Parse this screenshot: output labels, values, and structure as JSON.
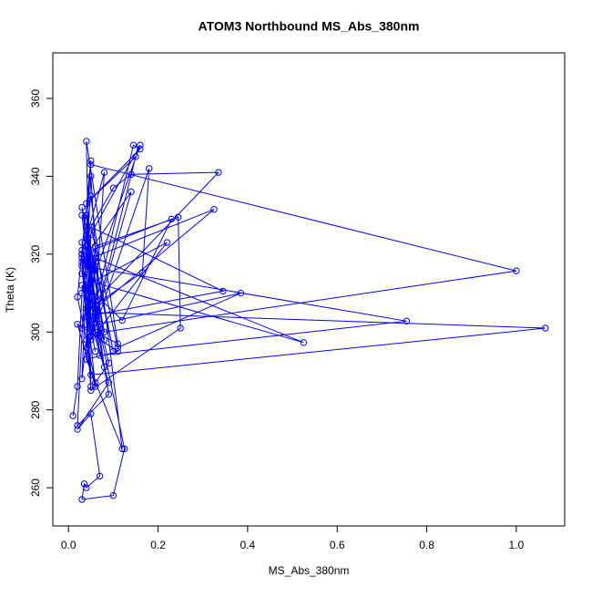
{
  "chart_data": {
    "type": "line",
    "title": "ATOM3 Northbound MS_Abs_380nm",
    "x_label": "MS_Abs_380nm",
    "y_label": "Theta (K)",
    "series": [
      {
        "color": "#0000ff",
        "x": [
          0.01,
          0.02,
          0.03,
          0.05,
          0.04,
          0.06,
          0.03,
          0.08,
          0.05,
          0.04,
          0.1,
          0.06,
          0.03,
          0.05,
          0.07,
          0.04,
          0.02,
          0.09,
          0.05,
          0.03,
          0.06,
          0.11,
          0.04,
          0.05,
          0.03,
          0.08,
          0.06,
          0.04,
          0.12,
          0.05,
          0.03,
          0.07,
          0.04,
          0.05,
          0.02,
          0.06,
          0.09,
          0.04,
          0.05,
          0.03,
          0.1,
          0.14,
          0.335,
          0.06,
          0.04,
          0.05,
          0.16,
          0.03,
          0.05,
          1.0,
          0.08,
          0.04,
          0.06,
          1.065,
          0.05,
          0.03,
          0.755,
          0.07,
          0.04,
          0.05,
          0.525,
          0.06,
          0.03,
          0.385,
          0.11,
          0.05,
          0.345,
          0.04,
          0.06,
          0.245,
          0.25,
          0.05,
          0.03,
          0.23,
          0.12,
          0.04,
          0.22,
          0.05,
          0.18,
          0.165,
          0.06,
          0.145,
          0.16,
          0.04,
          0.15,
          0.05,
          0.14,
          0.03,
          0.325,
          0.06,
          0.125,
          0.1,
          0.03,
          0.035,
          0.04,
          0.07,
          0.05,
          0.02,
          0.09,
          0.04,
          0.06,
          0.03,
          0.08,
          0.05,
          0.04,
          0.11,
          0.02,
          0.06,
          0.03,
          0.05
        ],
        "values": [
          278.5,
          286,
          310,
          325,
          298,
          316,
          332,
          291,
          304,
          327,
          295,
          318,
          288,
          340,
          302,
          322,
          276,
          284,
          311,
          330,
          300,
          297,
          349,
          286,
          320,
          341,
          306,
          293,
          270,
          335,
          315,
          299,
          326,
          344,
          309,
          287,
          292,
          318,
          303,
          323,
          337,
          340.5,
          341,
          308,
          296,
          312,
          348,
          321,
          343,
          315.7,
          300,
          325,
          305,
          301,
          289,
          317,
          302.8,
          294,
          330,
          313,
          297.3,
          319,
          301,
          310,
          296,
          327,
          310.5,
          304,
          322,
          329.5,
          301,
          285,
          320,
          329,
          303,
          312,
          323,
          298,
          342,
          315.3,
          307,
          348,
          347,
          333,
          345,
          299,
          336,
          318,
          331.5,
          306,
          270,
          258,
          257,
          261,
          260,
          263,
          279,
          275,
          287,
          306,
          295,
          312,
          298,
          321,
          293,
          295,
          302,
          286,
          319,
          301
        ]
      }
    ],
    "xlim": [
      -0.035,
      1.108
    ],
    "xticks": [
      {
        "value": 0,
        "label": "0.0"
      },
      0.2,
      0.4,
      0.6,
      0.8,
      {
        "value": 1,
        "label": "1.0"
      }
    ],
    "ylim": [
      250.2,
      371.7
    ],
    "yticks": [
      260,
      280,
      300,
      320,
      340,
      360
    ],
    "grid": false
  }
}
